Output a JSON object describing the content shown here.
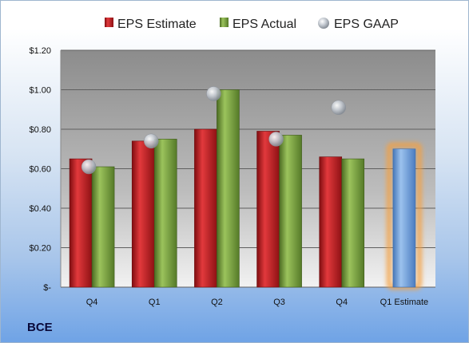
{
  "ticker": "BCE",
  "chart_data": {
    "type": "bar",
    "categories": [
      "Q4",
      "Q1",
      "Q2",
      "Q3",
      "Q4",
      "Q1 Estimate"
    ],
    "series": [
      {
        "name": "EPS Estimate",
        "type": "bar",
        "color": "#c0171c",
        "values": [
          0.65,
          0.74,
          0.8,
          0.79,
          0.66,
          null
        ]
      },
      {
        "name": "EPS Actual",
        "type": "bar",
        "color": "#77a13b",
        "values": [
          0.61,
          0.75,
          1.0,
          0.77,
          0.65,
          null
        ]
      },
      {
        "name": "EPS GAAP",
        "type": "scatter",
        "color": "#b9bfc7",
        "values": [
          0.61,
          0.74,
          0.98,
          0.75,
          0.91,
          null
        ]
      },
      {
        "name": "",
        "type": "bar",
        "color": "#6f9fd8",
        "highlight": "#f5a040",
        "values": [
          null,
          null,
          null,
          null,
          null,
          0.7
        ]
      }
    ],
    "ylim": [
      0,
      1.2
    ],
    "yticks": [
      0,
      0.2,
      0.4,
      0.6,
      0.8,
      1.0,
      1.2
    ],
    "ytick_labels": [
      "$-",
      "$0.20",
      "$0.40",
      "$0.60",
      "$0.80",
      "$1.00",
      "$1.20"
    ],
    "grid": true,
    "legend_position": "top"
  }
}
